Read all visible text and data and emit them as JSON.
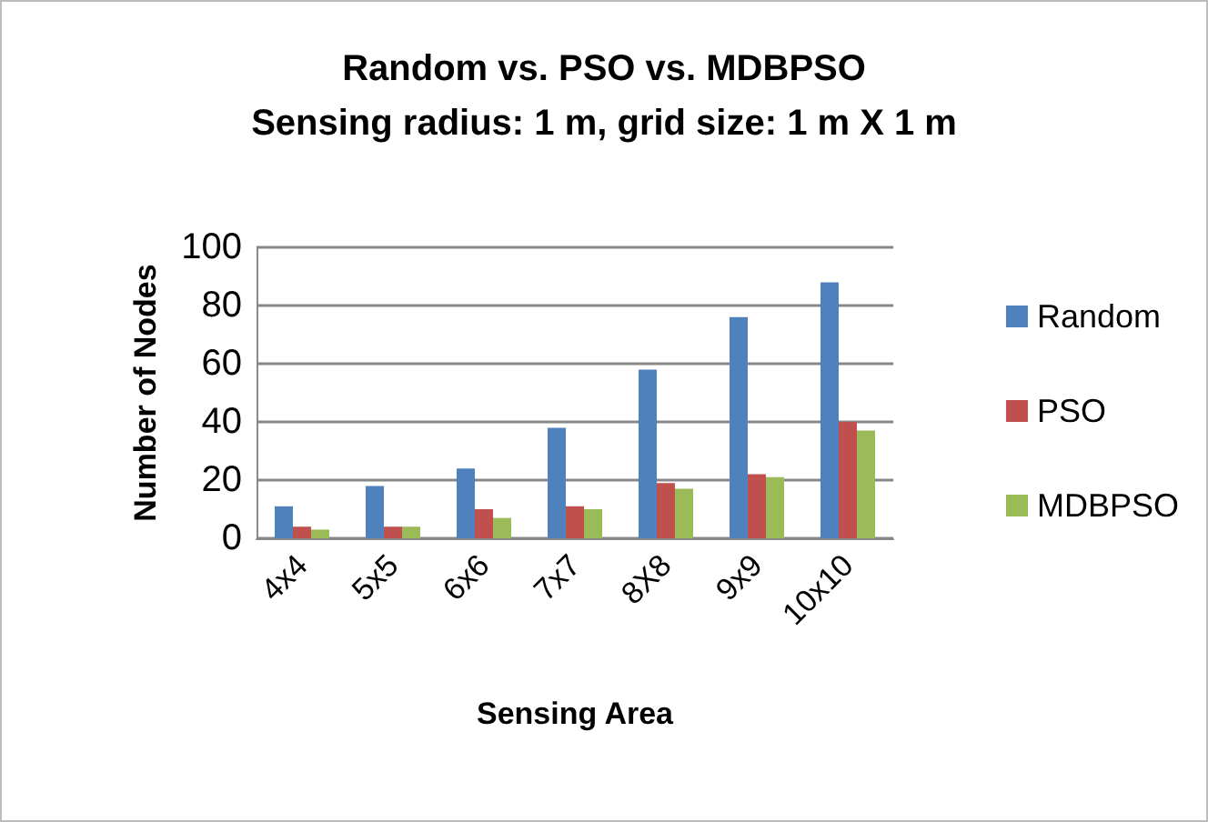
{
  "chart_data": {
    "type": "bar",
    "title": "Random vs. PSO vs. MDBPSO",
    "subtitle": "Sensing radius: 1 m, grid size: 1 m X 1 m",
    "xlabel": "Sensing Area",
    "ylabel": "Number of Nodes",
    "categories": [
      "4x4",
      "5x5",
      "6x6",
      "7x7",
      "8X8",
      "9x9",
      "10x10"
    ],
    "series": [
      {
        "name": "Random",
        "color": "#4f81bd",
        "values": [
          11,
          18,
          24,
          38,
          58,
          76,
          88
        ]
      },
      {
        "name": "PSO",
        "color": "#c0504d",
        "values": [
          4,
          4,
          10,
          11,
          19,
          22,
          40
        ]
      },
      {
        "name": "MDBPSO",
        "color": "#9bbb59",
        "values": [
          3,
          4,
          7,
          10,
          17,
          21,
          37
        ]
      }
    ],
    "ylim": [
      0,
      100
    ],
    "yticks": [
      0,
      20,
      40,
      60,
      80,
      100
    ],
    "grid": "y",
    "legend": "right"
  }
}
